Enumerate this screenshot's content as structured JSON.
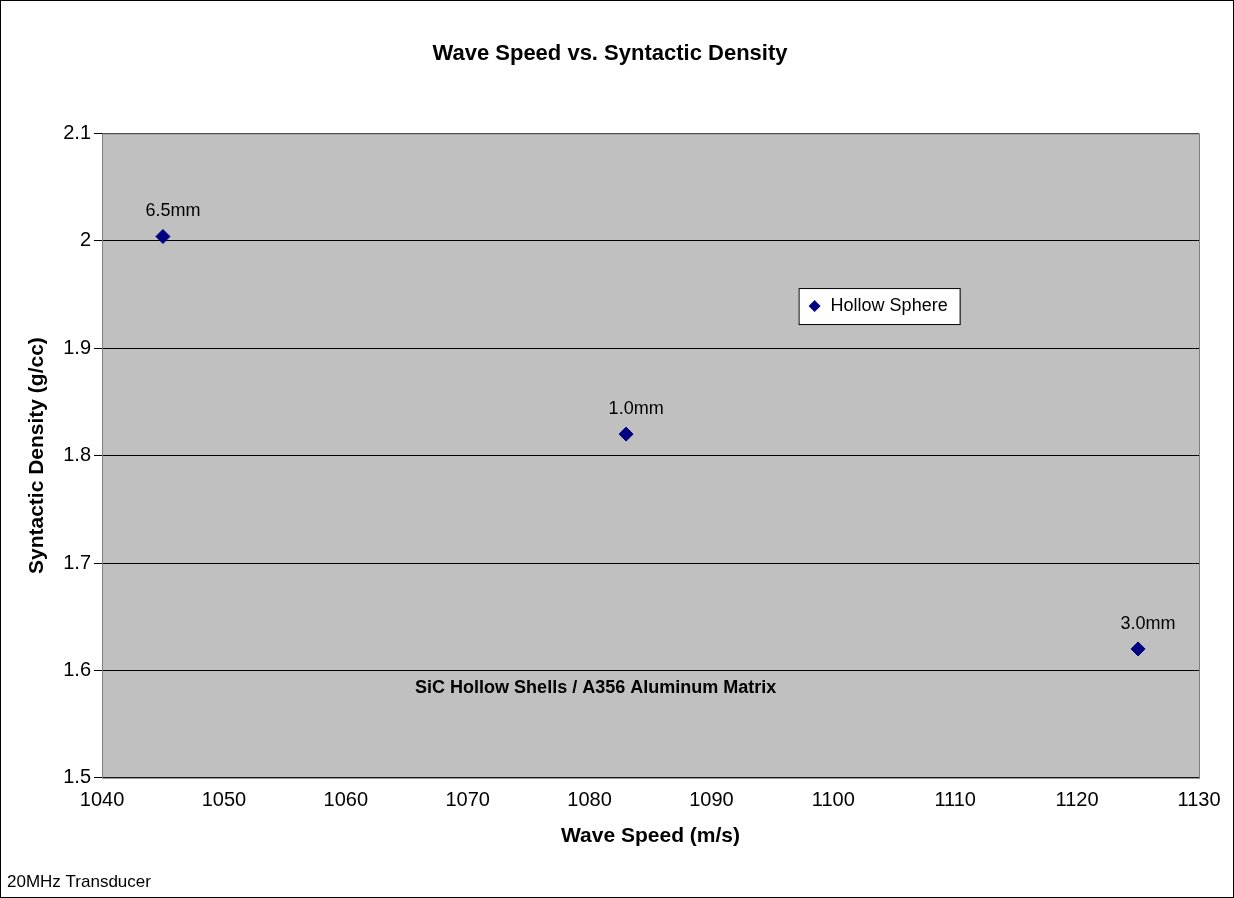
{
  "chart_data": {
    "type": "scatter",
    "title": "Wave Speed vs. Syntactic Density",
    "x_label": "Wave Speed (m/s)",
    "y_label": "Syntactic Density (g/cc)",
    "series": [
      {
        "name": "Hollow Sphere",
        "color": "#000080",
        "marker": "diamond",
        "x": [
          1045,
          1083,
          1125
        ],
        "values": [
          2.004,
          1.82,
          1.62
        ],
        "point_labels": [
          "6.5mm",
          "1.0mm",
          "3.0mm"
        ]
      }
    ],
    "xlim": [
      1040,
      1130
    ],
    "xticks": [
      1040,
      1050,
      1060,
      1070,
      1080,
      1090,
      1100,
      1110,
      1120,
      1130
    ],
    "ylim": [
      1.5,
      2.1
    ],
    "yticks": [
      1.5,
      1.6,
      1.7,
      1.8,
      1.9,
      2,
      2.1
    ],
    "grid": "y",
    "legend": "upper right",
    "annotations": [
      "SiC Hollow Shells / A356 Aluminum Matrix"
    ],
    "footnote": "20MHz Transducer"
  }
}
